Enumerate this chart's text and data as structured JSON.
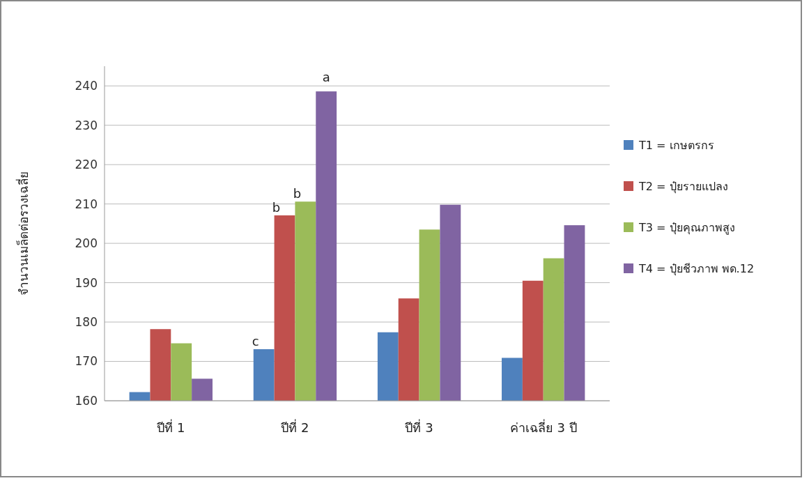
{
  "chart_data": {
    "type": "bar",
    "ylabel": "จำนวนเมล็ดต่อรวงเฉลี่ย",
    "categories": [
      "ปีที่ 1",
      "ปีที่ 2",
      "ปีที่ 3",
      "ค่าเฉลี่ย 3 ปี"
    ],
    "series": [
      {
        "name": "T1 = เกษตรกร",
        "color": "#4f81bd",
        "values": [
          162.2,
          173.1,
          177.4,
          170.9
        ]
      },
      {
        "name": "T2 = ปุ๋ยรายแปลง",
        "color": "#c0504d",
        "values": [
          178.2,
          207.1,
          186,
          190.5
        ]
      },
      {
        "name": "T3 = ปุ๋ยคุณภาพสูง",
        "color": "#9bbb59",
        "values": [
          174.6,
          210.6,
          203.5,
          196.2
        ]
      },
      {
        "name": "T4 = ปุ๋ยชีวภาพ พด.12",
        "color": "#8064a2",
        "values": [
          165.6,
          238.6,
          209.8,
          204.6
        ]
      }
    ],
    "ylim": [
      160,
      245
    ],
    "yticks": [
      160,
      170,
      180,
      190,
      200,
      210,
      220,
      230,
      240
    ],
    "grid": "y",
    "legend": "right",
    "annotations": [
      {
        "text": "c",
        "x": "ปีที่ 2",
        "y": 173.1
      },
      {
        "text": "b",
        "x": "ปีที่ 2",
        "y": 207.1
      },
      {
        "text": "b",
        "x": "ปีที่ 2",
        "y": 210.6
      },
      "a"
    ]
  }
}
